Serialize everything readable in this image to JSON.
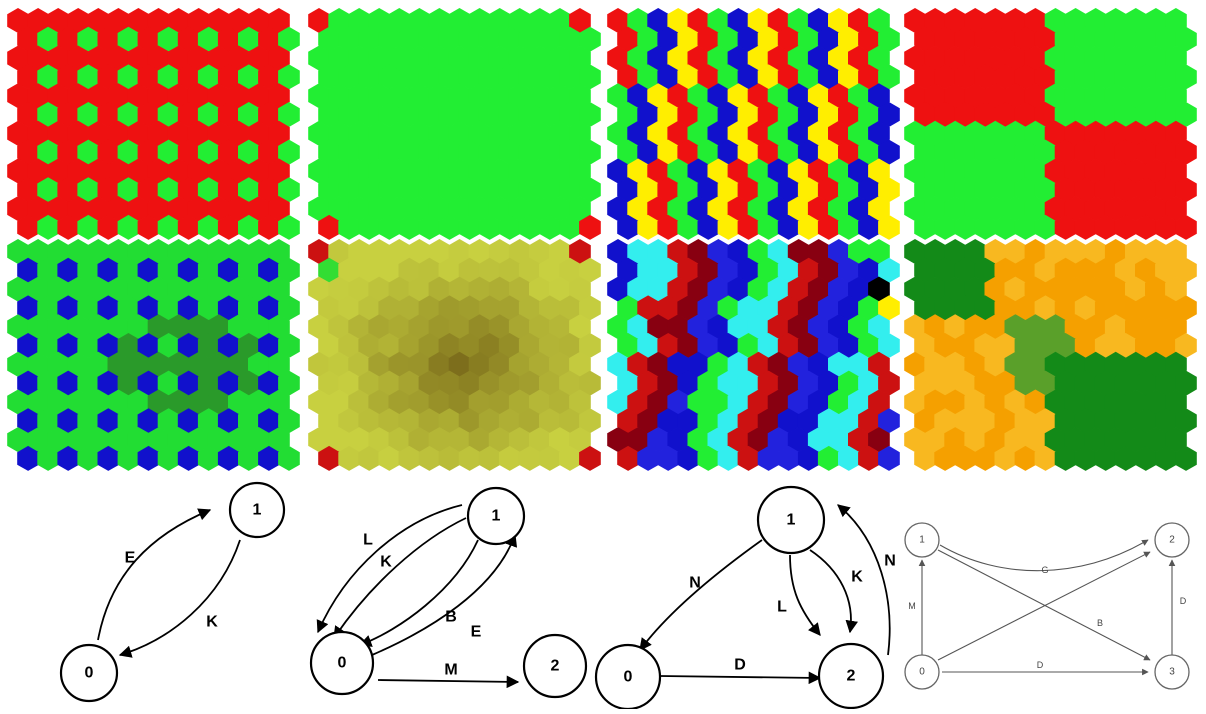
{
  "hex_maps": [
    {
      "id": "map-1",
      "pattern": "dots",
      "bg": "#ee1111",
      "dot": "#22ee33",
      "dot_period_col": 2,
      "dot_period_row": 2
    },
    {
      "id": "map-2",
      "pattern": "solid-corners",
      "bg": "#22ee33",
      "corner": "#ee1111"
    },
    {
      "id": "map-3",
      "pattern": "stripes",
      "stripe_colors": [
        "#ee1111",
        "#22ee33",
        "#1111cc",
        "#ffee00"
      ]
    },
    {
      "id": "map-4",
      "pattern": "quadrants",
      "colors": [
        "#ee1111",
        "#22ee33",
        "#22ee33",
        "#ee1111"
      ]
    },
    {
      "id": "map-5",
      "pattern": "dots-noisy",
      "bg": "#22dd33",
      "bg_dark": "#2a9a2a",
      "dot": "#1111cc"
    },
    {
      "id": "map-6",
      "pattern": "olive-gradient",
      "center": "#7a6a1a",
      "edge": "#c8d040",
      "corner": "#cc1111",
      "corner_alt": "#33dd33"
    },
    {
      "id": "map-7",
      "pattern": "stripes-complex",
      "stripe_colors": [
        "#1111cc",
        "#22ee33",
        "#33eeee",
        "#cc1111",
        "#880011",
        "#2222dd"
      ]
    },
    {
      "id": "map-8",
      "pattern": "orange-green-regions",
      "orange": "#f5a000",
      "orange_light": "#f8b820",
      "green": "#138a18",
      "green_mid": "#5aa02a"
    }
  ],
  "graphs": [
    {
      "id": "graph-1",
      "nodes": [
        {
          "id": "1",
          "label": "1"
        },
        {
          "id": "0",
          "label": "0"
        }
      ],
      "edges": [
        {
          "from": "0",
          "to": "1",
          "label": "E"
        },
        {
          "from": "1",
          "to": "0",
          "label": "K"
        }
      ]
    },
    {
      "id": "graph-2",
      "nodes": [
        {
          "id": "1",
          "label": "1"
        },
        {
          "id": "0",
          "label": "0"
        },
        {
          "id": "2",
          "label": "2"
        }
      ],
      "edges": [
        {
          "from": "1",
          "to": "0",
          "label": "L"
        },
        {
          "from": "1",
          "to": "0",
          "label": "K"
        },
        {
          "from": "1",
          "to": "0",
          "label": "B"
        },
        {
          "from": "0",
          "to": "1",
          "label": "E"
        },
        {
          "from": "0",
          "to": "2",
          "label": "M"
        }
      ]
    },
    {
      "id": "graph-3",
      "nodes": [
        {
          "id": "1",
          "label": "1"
        },
        {
          "id": "0",
          "label": "0"
        },
        {
          "id": "2",
          "label": "2"
        }
      ],
      "edges": [
        {
          "from": "1",
          "to": "0",
          "label": "N"
        },
        {
          "from": "1",
          "to": "2",
          "label": "L"
        },
        {
          "from": "1",
          "to": "2",
          "label": "K"
        },
        {
          "from": "2",
          "to": "1",
          "label": "N"
        },
        {
          "from": "0",
          "to": "2",
          "label": "D"
        }
      ]
    },
    {
      "id": "graph-4",
      "nodes": [
        {
          "id": "1",
          "label": "1"
        },
        {
          "id": "2",
          "label": "2"
        },
        {
          "id": "0",
          "label": "0"
        },
        {
          "id": "3",
          "label": "3"
        }
      ],
      "edges": [
        {
          "from": "1",
          "to": "2",
          "label": "G"
        },
        {
          "from": "1",
          "to": "3",
          "label": "B"
        },
        {
          "from": "0",
          "to": "2",
          "label": ""
        },
        {
          "from": "0",
          "to": "3",
          "label": "D"
        },
        {
          "from": "0",
          "to": "1",
          "label": "M"
        },
        {
          "from": "3",
          "to": "2",
          "label": "D"
        }
      ]
    }
  ]
}
